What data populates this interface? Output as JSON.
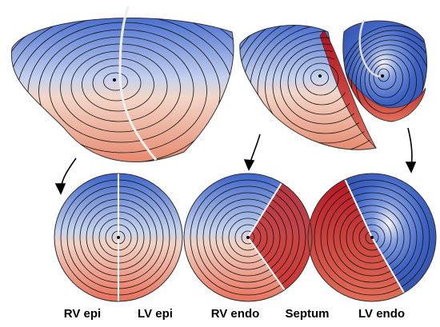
{
  "labels": [
    "RV epi",
    "LV epi",
    "RV endo",
    "Septum",
    "LV endo"
  ]
}
